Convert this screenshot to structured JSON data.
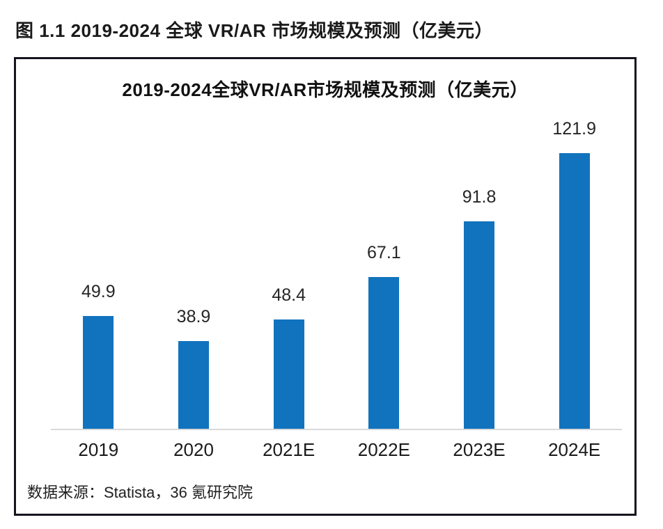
{
  "page": {
    "figure_caption": "图 1.1 2019-2024 全球 VR/AR 市场规模及预测（亿美元）"
  },
  "chart_data": {
    "type": "bar",
    "title": "2019-2024全球VR/AR市场规模及预测（亿美元）",
    "categories": [
      "2019",
      "2020",
      "2021E",
      "2022E",
      "2023E",
      "2024E"
    ],
    "values": [
      49.9,
      38.9,
      48.4,
      67.1,
      91.8,
      121.9
    ],
    "data_labels": [
      "49.9",
      "38.9",
      "48.4",
      "67.1",
      "91.8",
      "121.9"
    ],
    "xlabel": "",
    "ylabel": "",
    "ylim": [
      0,
      140
    ],
    "grid": false,
    "legend": "none",
    "bar_color": "#1173BE",
    "source": "数据来源：Statista，36 氪研究院"
  },
  "colors": {
    "bar": "#1173BE",
    "panel_border": "#15151f",
    "axis_line": "#d9d9d9",
    "text": "#1a1a1a"
  }
}
